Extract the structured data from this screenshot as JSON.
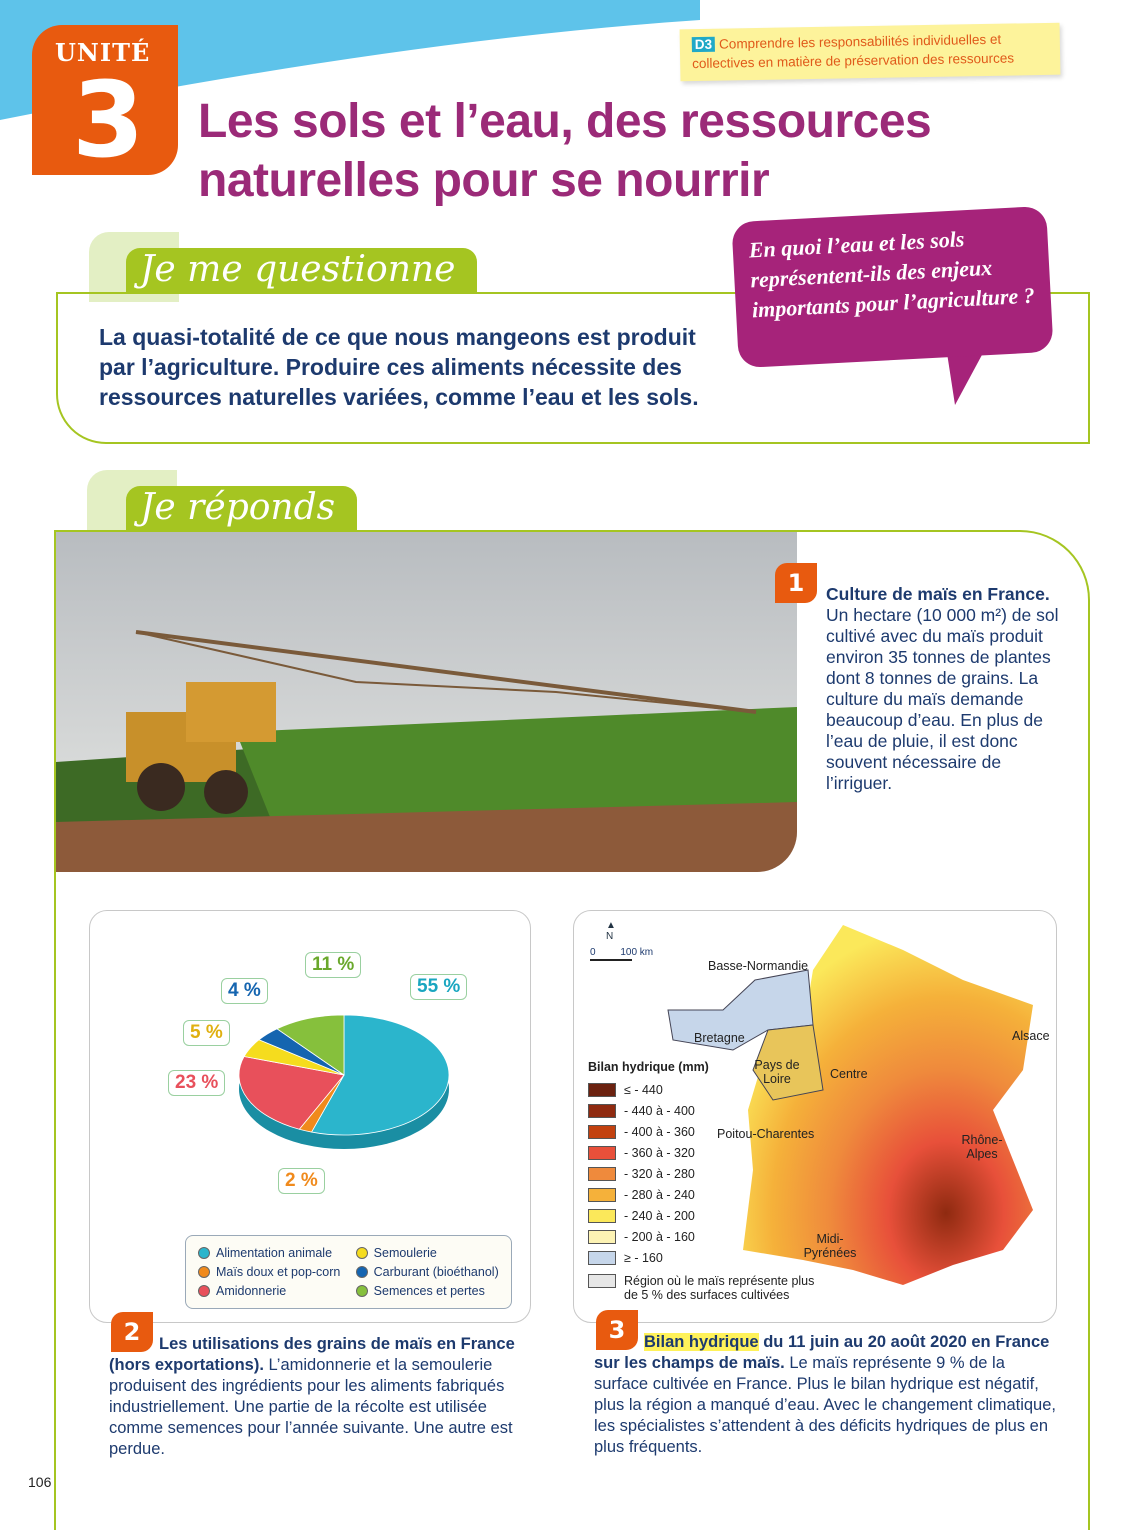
{
  "header": {
    "unit_word": "UNITÉ",
    "unit_number": "3",
    "title": "Les sols et l’eau, des ressources naturelles pour se nourrir",
    "note_badge": "D3",
    "note_text": "Comprendre les responsabilités individuelles et collectives en matière de préservation des ressources"
  },
  "questionne": {
    "tab": "Je me questionne",
    "text": "La quasi-totalité de ce que nous mangeons est produit par l’agriculture. Produire ces aliments nécessite des ressources naturelles variées, comme l’eau et les sols.",
    "question": "En quoi l’eau et les sols représentent-ils des enjeux importants pour l’agriculture ?"
  },
  "reponds": {
    "tab": "Je réponds"
  },
  "doc1": {
    "number": "1",
    "title": "Culture de maïs en France.",
    "text": "Un hectare (10 000 m²) de sol cultivé avec du maïs produit environ 35 tonnes de plantes dont 8 tonnes de grains. La culture du maïs demande beaucoup d’eau. En plus de l’eau de pluie, il est donc souvent nécessaire de l’irriguer."
  },
  "doc2": {
    "number": "2",
    "title": "Les utilisations des grains de maïs en France (hors exportations).",
    "text": "L’amidonnerie et la semoulerie produisent des ingrédients pour les aliments fabriqués industriellement. Une partie de la récolte est utilisée comme semences pour l’année suivante. Une autre est perdue."
  },
  "doc3": {
    "number": "3",
    "title_highlight": "Bilan hydrique",
    "title_rest": "du 11 juin au 20 août 2020 en France sur les champs de maïs.",
    "text": "Le maïs représente 9 % de la surface cultivée en France. Plus le bilan hydrique est négatif,  plus la région a manqué d’eau. Avec le changement climatique, les spécialistes s’attendent à des déficits hydriques de plus en plus fréquents."
  },
  "chart_data": {
    "type": "pie",
    "series": [
      {
        "name": "Alimentation animale",
        "value": 55,
        "label": "55 %",
        "color": "#2bb5cc"
      },
      {
        "name": "Maïs doux et pop-corn",
        "value": 2,
        "label": "2 %",
        "color": "#f08a1c"
      },
      {
        "name": "Amidonnerie",
        "value": 23,
        "label": "23 %",
        "color": "#e8505b"
      },
      {
        "name": "Semoulerie",
        "value": 5,
        "label": "5 %",
        "color": "#f5dc1e"
      },
      {
        "name": "Carburant (bioéthanol)",
        "value": 4,
        "label": "4 %",
        "color": "#1565b0"
      },
      {
        "name": "Semences et pertes",
        "value": 11,
        "label": "11 %",
        "color": "#86c03c"
      }
    ],
    "legend_placement": "bottom"
  },
  "map": {
    "north": "N",
    "scale_zero": "0",
    "scale_label": "100 km",
    "legend_title": "Bilan hydrique (mm)",
    "legend": [
      {
        "label": "≤ - 440",
        "color": "#6b2210"
      },
      {
        "label": "- 440 à - 400",
        "color": "#8f2a10"
      },
      {
        "label": "- 400 à - 360",
        "color": "#c2410f"
      },
      {
        "label": "- 360 à - 320",
        "color": "#e8503a"
      },
      {
        "label": "- 320 à - 280",
        "color": "#ef8a3c"
      },
      {
        "label": "- 280 à - 240",
        "color": "#f5b13a"
      },
      {
        "label": "- 240 à - 200",
        "color": "#fbe85a"
      },
      {
        "label": "- 200 à - 160",
        "color": "#fdf3b4"
      },
      {
        "label": "≥ - 160",
        "color": "#c6d6ea"
      }
    ],
    "region_note": "Région où le maïs représente plus de 5 % des surfaces cultivées",
    "regions": [
      "Basse-Normandie",
      "Bretagne",
      "Pays de Loire",
      "Centre",
      "Alsace",
      "Poitou-Charentes",
      "Rhône-Alpes",
      "Midi-Pyrénées"
    ]
  },
  "page_number": "106"
}
